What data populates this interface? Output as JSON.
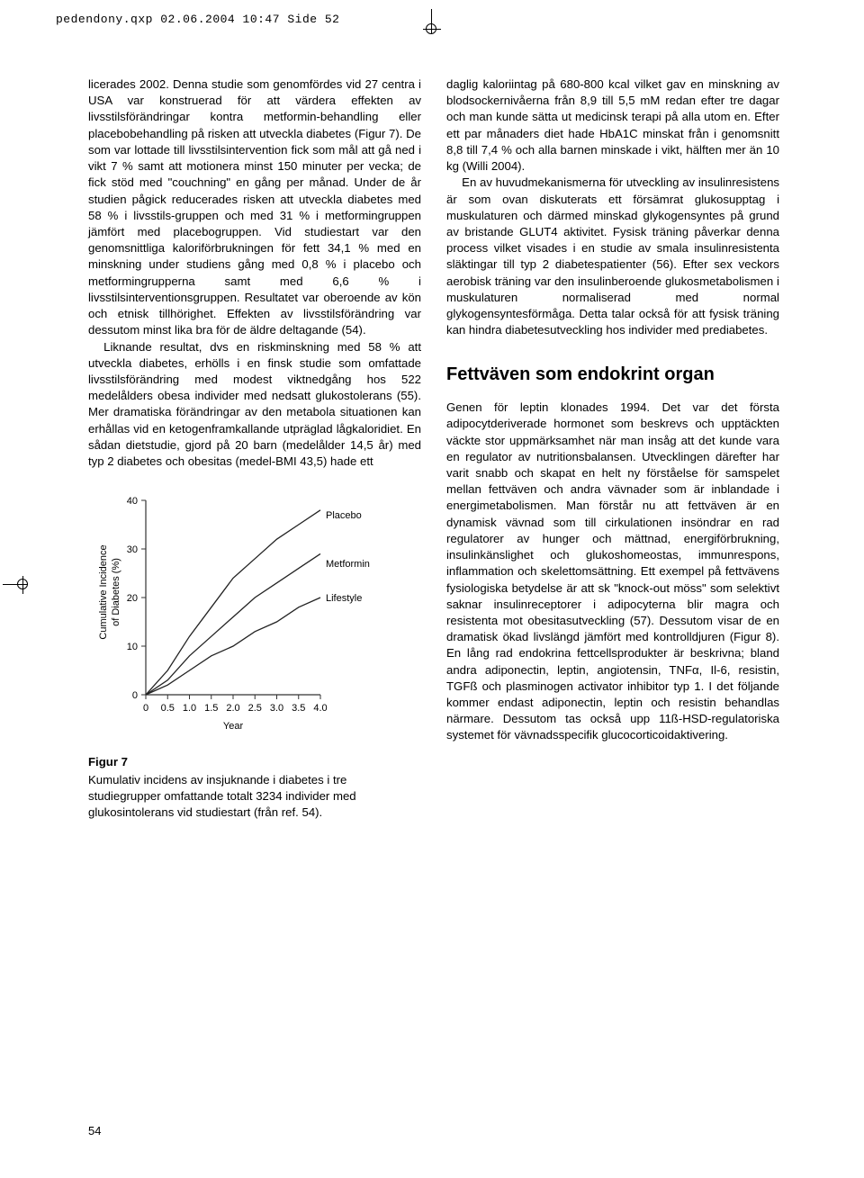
{
  "header_meta": "pedendony.qxp  02.06.2004  10:47  Side 52",
  "left_column": {
    "p1": "licerades 2002. Denna studie som genomfördes vid 27 centra i USA var konstruerad för att värdera effekten av livsstilsförändringar kontra metformin-behandling eller placebobehandling på risken att utveckla diabetes (Figur 7). De som var lottade till livsstilsintervention fick som mål att gå ned i vikt 7 % samt att motionera minst 150 minuter per vecka; de fick stöd med \"couchning\" en gång per månad. Under de år studien pågick reducerades risken att utveckla diabetes med 58 % i livsstils-gruppen och med 31 % i metformingruppen jämfört med placebogruppen. Vid studiestart var den genomsnittliga kaloriförbrukningen för fett 34,1 % med en minskning under studiens gång med 0,8 % i placebo och metformingrupperna samt med 6,6 % i livsstilsinterventionsgruppen. Resultatet var oberoende av kön och etnisk tillhörighet. Effekten av livsstilsförändring var dessutom minst lika bra för de äldre deltagande (54).",
    "p2": "Liknande resultat, dvs en riskminskning med 58 % att utveckla diabetes, erhölls i en finsk studie som omfattade livsstilsförändring med modest viktnedgång hos 522 medelålders obesa individer med nedsatt glukostolerans (55). Mer dramatiska förändringar av den metabola situationen kan erhållas vid en ketogenframkallande utpräglad lågkaloridiet. En sådan dietstudie, gjord på 20 barn (medelålder 14,5 år) med typ 2 diabetes och obesitas (medel-BMI 43,5) hade ett"
  },
  "right_column": {
    "p1": "daglig kaloriintag på 680-800 kcal vilket gav en minskning av blodsockernivåerna från 8,9 till 5,5 mM redan efter tre dagar och man kunde sätta ut medicinsk terapi på alla utom en. Efter ett par månaders diet hade HbA1C minskat från i genomsnitt 8,8 till 7,4 % och alla barnen minskade i vikt, hälften mer än 10 kg (Willi 2004).",
    "p2": "En av huvudmekanismerna för utveckling av insulinresistens är som ovan diskuterats ett försämrat glukosupptag i muskulaturen och därmed minskad glykogensyntes på grund av bristande GLUT4 aktivitet. Fysisk träning påverkar denna process vilket visades i en studie av smala insulinresistenta släktingar till typ 2 diabetespatienter (56). Efter sex veckors aerobisk träning var den insulinberoende glukosmetabolismen i muskulaturen normaliserad med normal glykogensyntesförmåga. Detta talar också för att fysisk träning kan hindra diabetesutveckling hos individer med prediabetes.",
    "section_title": "Fettväven som endokrint organ",
    "p3": "Genen för leptin klonades 1994. Det var det första adipocytderiverade hormonet som beskrevs och upptäckten väckte stor uppmärksamhet när man insåg att det kunde vara en regulator av nutritionsbalansen. Utvecklingen därefter har varit snabb och skapat en helt ny förståelse för samspelet mellan fettväven och andra vävnader som är inblandade i energimetabolismen. Man förstår nu att fettväven är en dynamisk vävnad som till cirkulationen insöndrar en rad regulatorer av hunger och mättnad, energiförbrukning, insulinkänslighet och glukoshomeostas, immunrespons, inflammation och skelettomsättning. Ett exempel på fettvävens fysiologiska betydelse är att sk \"knock-out möss\" som selektivt saknar insulinreceptorer i adipocyterna blir magra och resistenta mot obesitasutveckling (57). Dessutom visar de en dramatisk ökad livslängd jämfört med kontrolldjuren (Figur 8). En lång rad endokrina fettcellsprodukter är beskrivna; bland andra adiponectin, leptin, angiotensin, TNFα, Il-6, resistin, TGFß och plasminogen activator inhibitor typ 1. I det följande kommer endast adiponectin, leptin och resistin behandlas närmare. Dessutom tas också upp 11ß-HSD-regulatoriska systemet för vävnadsspecifik glucocorticoidaktivering."
  },
  "figure": {
    "type": "line",
    "label": "Figur 7",
    "caption": "Kumulativ incidens av insjuknande i diabetes i tre studiegrupper omfattande totalt 3234 individer med glukosintolerans vid studiestart (från ref. 54).",
    "y_label": "Cumulative Incidence of Diabetes (%)",
    "x_label": "Year",
    "xlim": [
      0,
      4.0
    ],
    "ylim": [
      0,
      40
    ],
    "xticks": [
      0,
      0.5,
      1.0,
      1.5,
      2.0,
      2.5,
      3.0,
      3.5,
      4.0
    ],
    "yticks": [
      0,
      10,
      20,
      30,
      40
    ],
    "axis_color": "#333333",
    "tick_fontsize": 11,
    "label_fontsize": 11,
    "legend_fontsize": 11,
    "line_color": "#222222",
    "line_width": 1.3,
    "background_color": "#ffffff",
    "series": [
      {
        "name": "Placebo",
        "x": [
          0,
          0.5,
          1.0,
          1.5,
          2.0,
          2.5,
          3.0,
          3.5,
          4.0
        ],
        "y": [
          0,
          5,
          12,
          18,
          24,
          28,
          32,
          35,
          38
        ],
        "label_y": 37
      },
      {
        "name": "Metformin",
        "x": [
          0,
          0.5,
          1.0,
          1.5,
          2.0,
          2.5,
          3.0,
          3.5,
          4.0
        ],
        "y": [
          0,
          3,
          8,
          12,
          16,
          20,
          23,
          26,
          29
        ],
        "label_y": 27
      },
      {
        "name": "Lifestyle",
        "x": [
          0,
          0.5,
          1.0,
          1.5,
          2.0,
          2.5,
          3.0,
          3.5,
          4.0
        ],
        "y": [
          0,
          2,
          5,
          8,
          10,
          13,
          15,
          18,
          20
        ],
        "label_y": 20
      }
    ]
  },
  "page_number": "54"
}
